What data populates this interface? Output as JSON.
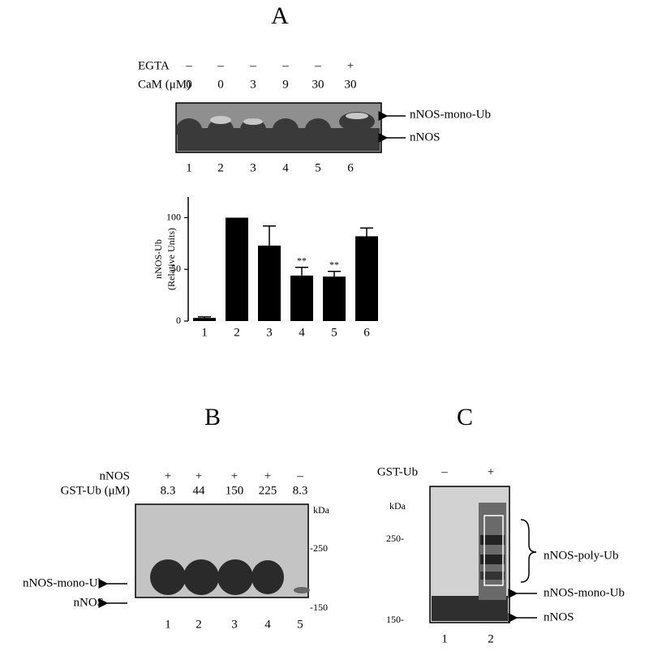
{
  "panel_a": {
    "label": "A",
    "conditions": [
      {
        "name": "EGTA",
        "values": [
          "–",
          "–",
          "–",
          "–",
          "–",
          "+"
        ]
      },
      {
        "name": "CaM (μM)",
        "values": [
          "0",
          "0",
          "3",
          "9",
          "30",
          "30"
        ]
      }
    ],
    "blot_labels": [
      "nNOS-mono-Ub",
      "nNOS"
    ],
    "lanes": [
      "1",
      "2",
      "3",
      "4",
      "5",
      "6"
    ]
  },
  "chart_data": {
    "type": "bar",
    "y_label": [
      "nNOS-Ub",
      "(Relative Units)"
    ],
    "categories": [
      "1",
      "2",
      "3",
      "4",
      "5",
      "6"
    ],
    "values": [
      3,
      100,
      73,
      44,
      43,
      82
    ],
    "errors": [
      1,
      0,
      19,
      8,
      5,
      8
    ],
    "annotations": [
      null,
      null,
      null,
      "**",
      "**",
      null
    ],
    "color": "#000000",
    "ylim": [
      0,
      120
    ],
    "yticks": [
      0,
      50,
      100
    ]
  },
  "panel_b": {
    "label": "B",
    "conditions": [
      {
        "name": "nNOS",
        "values": [
          "+",
          "+",
          "+",
          "+",
          "–"
        ]
      },
      {
        "name": "GST-Ub (μM)",
        "values": [
          "8.3",
          "44",
          "150",
          "225",
          "8.3"
        ]
      }
    ],
    "markers": [
      "kDa",
      "-250",
      "-150"
    ],
    "blot_labels": [
      "nNOS-mono-Ub",
      "nNOS"
    ],
    "lanes": [
      "1",
      "2",
      "3",
      "4",
      "5"
    ]
  },
  "panel_c": {
    "label": "C",
    "conditions": [
      {
        "name": "GST-Ub",
        "values": [
          "–",
          "+"
        ]
      }
    ],
    "markers": [
      "kDa",
      "250-",
      "150-"
    ],
    "blot_labels": [
      "nNOS-poly-Ub",
      "nNOS-mono-Ub",
      "nNOS"
    ],
    "lanes": [
      "1",
      "2"
    ]
  }
}
